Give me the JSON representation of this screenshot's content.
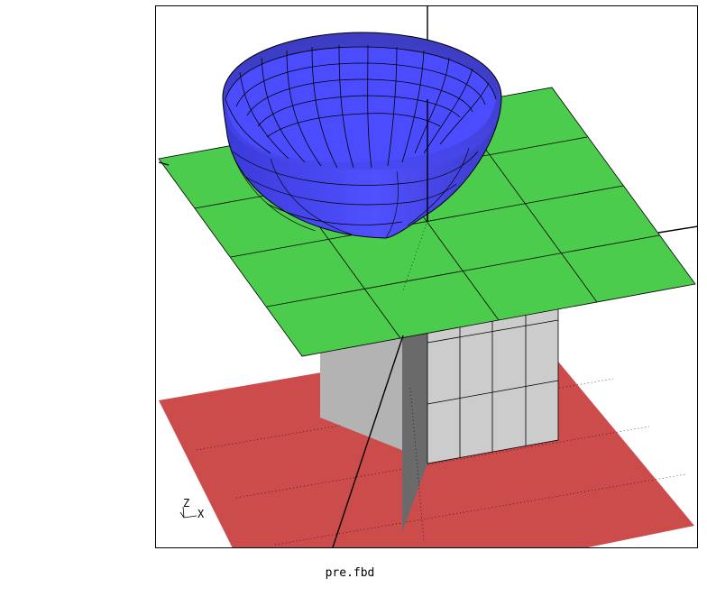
{
  "window": {
    "filename": "pre.fbd"
  },
  "triad": {
    "x_label": "X",
    "z_label": "Z"
  },
  "colors": {
    "background": "#ffffff",
    "frame": "#000000",
    "red_plane": "#cc4c4c",
    "green_plane": "#4ccc4c",
    "blue_bowl": "#4c4cff",
    "gray_block_front": "#cccccc",
    "gray_block_left": "#b3b3b3",
    "gray_block_dark": "#666666",
    "mesh_lines": "#000000"
  }
}
